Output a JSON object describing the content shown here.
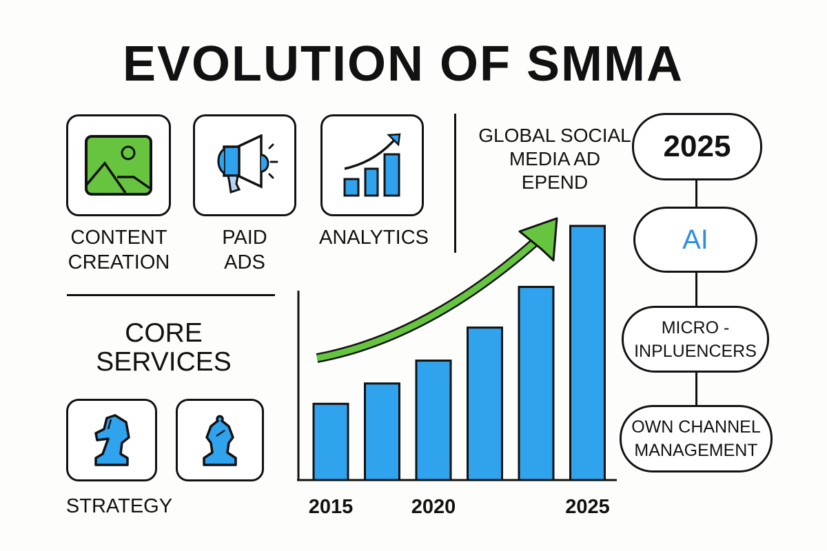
{
  "title": "EVOLUTION OF SMMA",
  "services": [
    {
      "label": "CONTENT CREATION",
      "icon": "image-icon"
    },
    {
      "label": "PAID ADS",
      "icon": "megaphone-icon"
    },
    {
      "label": "ANALYTICS",
      "icon": "growth-chart-icon"
    }
  ],
  "core_services": {
    "heading": "CORE SERVICES",
    "label": "STRATEGY",
    "icons": [
      "chess-knight-icon",
      "chess-bishop-icon"
    ]
  },
  "spend_heading": "GLOBAL SOCIAL MEDIA AD EPEND",
  "timeline": {
    "year": "2025",
    "items": [
      "AI",
      "MICRO - INPLUENCERS",
      "OWN CHANNEL MANAGEMENT"
    ]
  },
  "colors": {
    "blue": "#2fa3ee",
    "green": "#66c43f",
    "ink": "#111111",
    "ai_text": "#2f8fe0"
  },
  "chart_data": {
    "type": "bar",
    "categories": [
      "2015",
      "",
      "2020",
      "",
      "",
      "2025"
    ],
    "values": [
      30,
      38,
      47,
      60,
      76,
      100
    ],
    "title": "",
    "xlabel": "",
    "ylabel": "",
    "ylim": [
      0,
      100
    ],
    "trend_arrow": "upward",
    "grid": false
  }
}
